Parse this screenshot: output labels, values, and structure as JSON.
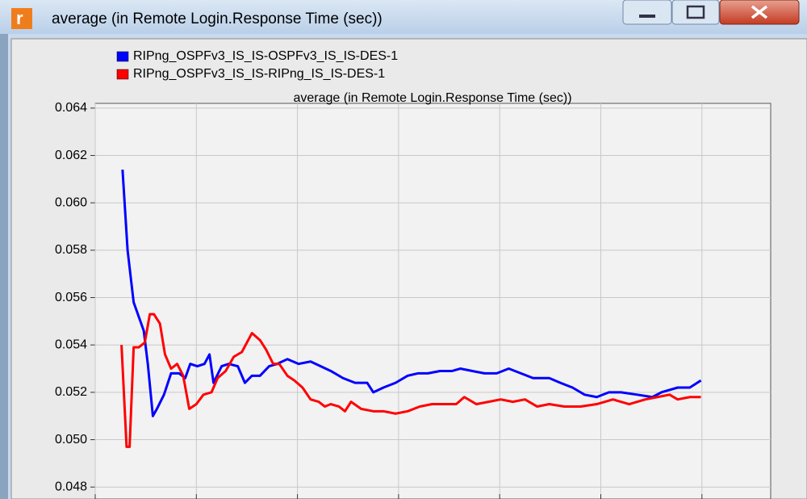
{
  "window": {
    "title": "average (in Remote Login.Response Time (sec))"
  },
  "chart_data": {
    "type": "line",
    "title": "average (in Remote Login.Response Time (sec))",
    "xlim": [
      0,
      6.68
    ],
    "xticks": [
      0,
      1,
      2,
      3,
      4,
      5,
      6
    ],
    "ylim": [
      0.0477,
      0.0642
    ],
    "yticks": [
      {
        "value": 0.048,
        "label": "0.048"
      },
      {
        "value": 0.05,
        "label": "0.050"
      },
      {
        "value": 0.052,
        "label": "0.052"
      },
      {
        "value": 0.054,
        "label": "0.054"
      },
      {
        "value": 0.056,
        "label": "0.056"
      },
      {
        "value": 0.058,
        "label": "0.058"
      },
      {
        "value": 0.06,
        "label": "0.060"
      },
      {
        "value": 0.062,
        "label": "0.062"
      },
      {
        "value": 0.064,
        "label": "0.064"
      }
    ],
    "grid": true,
    "legend": "top-left",
    "series": [
      {
        "name": "RIPng_OSPFv3_IS_IS-OSPFv3_IS_IS-DES-1",
        "color": "#0000ff",
        "x": [
          0.27,
          0.32,
          0.38,
          0.48,
          0.52,
          0.57,
          0.61,
          0.68,
          0.75,
          0.83,
          0.89,
          0.94,
          1.01,
          1.08,
          1.13,
          1.17,
          1.25,
          1.32,
          1.41,
          1.48,
          1.55,
          1.63,
          1.72,
          1.8,
          1.9,
          2.01,
          2.13,
          2.23,
          2.33,
          2.45,
          2.57,
          2.69,
          2.75,
          2.85,
          2.97,
          3.09,
          3.19,
          3.29,
          3.41,
          3.53,
          3.61,
          3.73,
          3.85,
          3.97,
          4.09,
          4.21,
          4.33,
          4.49,
          4.6,
          4.72,
          4.84,
          4.96,
          5.08,
          5.2,
          5.36,
          5.51,
          5.6,
          5.76,
          5.88,
          5.99
        ],
        "values": [
          0.0614,
          0.058,
          0.0558,
          0.0546,
          0.0532,
          0.051,
          0.0513,
          0.0519,
          0.0528,
          0.0528,
          0.0526,
          0.0532,
          0.0531,
          0.0532,
          0.0536,
          0.0524,
          0.0531,
          0.0532,
          0.0531,
          0.0524,
          0.0527,
          0.0527,
          0.0531,
          0.0532,
          0.0534,
          0.0532,
          0.0533,
          0.0531,
          0.0529,
          0.0526,
          0.0524,
          0.0524,
          0.052,
          0.0522,
          0.0524,
          0.0527,
          0.0528,
          0.0528,
          0.0529,
          0.0529,
          0.053,
          0.0529,
          0.0528,
          0.0528,
          0.053,
          0.0528,
          0.0526,
          0.0526,
          0.0524,
          0.0522,
          0.0519,
          0.0518,
          0.052,
          0.052,
          0.0519,
          0.0518,
          0.052,
          0.0522,
          0.0522,
          0.0525
        ]
      },
      {
        "name": "RIPng_OSPFv3_IS_IS-RIPng_IS_IS-DES-1",
        "color": "#ff0000",
        "x": [
          0.26,
          0.31,
          0.34,
          0.38,
          0.43,
          0.49,
          0.54,
          0.58,
          0.64,
          0.69,
          0.75,
          0.81,
          0.87,
          0.93,
          1.0,
          1.07,
          1.15,
          1.21,
          1.29,
          1.37,
          1.45,
          1.55,
          1.63,
          1.69,
          1.76,
          1.82,
          1.9,
          1.97,
          2.05,
          2.13,
          2.21,
          2.27,
          2.33,
          2.41,
          2.47,
          2.53,
          2.63,
          2.75,
          2.85,
          2.97,
          3.09,
          3.21,
          3.33,
          3.45,
          3.57,
          3.65,
          3.77,
          3.89,
          4.01,
          4.13,
          4.25,
          4.37,
          4.49,
          4.64,
          4.8,
          4.96,
          5.12,
          5.28,
          5.44,
          5.56,
          5.68,
          5.76,
          5.88,
          5.99
        ],
        "values": [
          0.054,
          0.0497,
          0.0497,
          0.0539,
          0.0539,
          0.0541,
          0.0553,
          0.0553,
          0.0549,
          0.0536,
          0.053,
          0.0532,
          0.0527,
          0.0513,
          0.0515,
          0.0519,
          0.052,
          0.0526,
          0.0529,
          0.0535,
          0.0537,
          0.0545,
          0.0542,
          0.0538,
          0.0532,
          0.0532,
          0.0527,
          0.0525,
          0.0522,
          0.0517,
          0.0516,
          0.0514,
          0.0515,
          0.0514,
          0.0512,
          0.0516,
          0.0513,
          0.0512,
          0.0512,
          0.0511,
          0.0512,
          0.0514,
          0.0515,
          0.0515,
          0.0515,
          0.0518,
          0.0515,
          0.0516,
          0.0517,
          0.0516,
          0.0517,
          0.0514,
          0.0515,
          0.0514,
          0.0514,
          0.0515,
          0.0517,
          0.0515,
          0.0517,
          0.0518,
          0.0519,
          0.0517,
          0.0518,
          0.0518
        ]
      }
    ]
  }
}
